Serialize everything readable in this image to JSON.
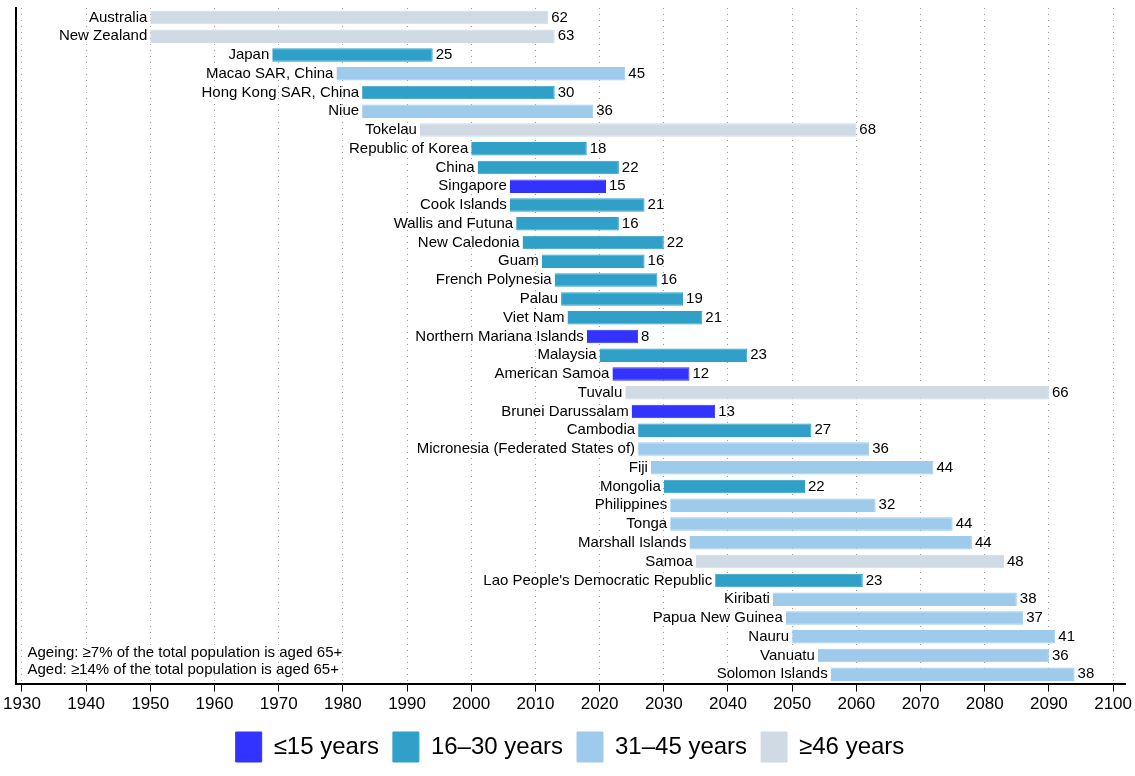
{
  "chart_data": {
    "type": "bar",
    "orientation": "horizontal",
    "categories": [
      "Australia",
      "New Zealand",
      "Japan",
      "Macao SAR, China",
      "Hong Kong SAR, China",
      "Niue",
      "Tokelau",
      "Republic of Korea",
      "China",
      "Singapore",
      "Cook Islands",
      "Wallis and Futuna",
      "New Caledonia",
      "Guam",
      "French Polynesia",
      "Palau",
      "Viet Nam",
      "Northern Mariana Islands",
      "Malaysia",
      "American Samoa",
      "Tuvalu",
      "Brunei Darussalam",
      "Cambodia",
      "Micronesia (Federated States of)",
      "Fiji",
      "Mongolia",
      "Philippines",
      "Tonga",
      "Marshall Islands",
      "Samoa",
      "Lao People's Democratic Republic",
      "Kiribati",
      "Papua New Guinea",
      "Nauru",
      "Vanuatu",
      "Solomon Islands"
    ],
    "series": [
      {
        "name": "≤15 years",
        "color": "#3333ff",
        "values": [
          null,
          null,
          null,
          null,
          null,
          null,
          null,
          null,
          null,
          15,
          null,
          null,
          null,
          null,
          null,
          null,
          null,
          8,
          null,
          12,
          null,
          13,
          null,
          null,
          null,
          null,
          null,
          null,
          null,
          null,
          null,
          null,
          null,
          null,
          null,
          null
        ],
        "base": [
          null,
          null,
          null,
          null,
          null,
          null,
          null,
          null,
          null,
          2006,
          null,
          null,
          null,
          null,
          null,
          null,
          null,
          2018,
          null,
          2022,
          null,
          2025,
          null,
          null,
          null,
          null,
          null,
          null,
          null,
          null,
          null,
          null,
          null,
          null,
          null,
          null
        ]
      },
      {
        "name": "16–30 years",
        "color": "#30a0c8",
        "values": [
          null,
          null,
          25,
          null,
          30,
          null,
          null,
          18,
          22,
          null,
          21,
          16,
          22,
          16,
          16,
          19,
          21,
          null,
          23,
          null,
          null,
          null,
          27,
          null,
          null,
          22,
          null,
          null,
          null,
          null,
          23,
          null,
          null,
          null,
          null,
          null
        ],
        "base": [
          null,
          null,
          1969,
          null,
          1983,
          null,
          null,
          2000,
          2001,
          null,
          2006,
          2007,
          2008,
          2011,
          2013,
          2014,
          2015,
          null,
          2020,
          null,
          null,
          null,
          2026,
          null,
          null,
          2030,
          null,
          null,
          null,
          null,
          2038,
          null,
          null,
          null,
          null,
          null
        ]
      },
      {
        "name": "31–45 years",
        "color": "#9ecbec",
        "values": [
          null,
          null,
          null,
          45,
          null,
          36,
          null,
          null,
          null,
          null,
          null,
          null,
          null,
          null,
          null,
          null,
          null,
          null,
          null,
          null,
          null,
          null,
          null,
          36,
          44,
          null,
          32,
          44,
          44,
          null,
          null,
          38,
          37,
          41,
          36,
          38
        ],
        "base": [
          null,
          null,
          null,
          1979,
          null,
          1983,
          null,
          null,
          null,
          null,
          null,
          null,
          null,
          null,
          null,
          null,
          null,
          null,
          null,
          null,
          null,
          null,
          null,
          2026,
          2028,
          null,
          2031,
          2031,
          2034,
          null,
          null,
          2047,
          2049,
          2050,
          2054,
          2056
        ]
      },
      {
        "name": "≥46 years",
        "color": "#d0dae5",
        "values": [
          62,
          63,
          null,
          null,
          null,
          null,
          68,
          null,
          null,
          null,
          null,
          null,
          null,
          null,
          null,
          null,
          null,
          null,
          null,
          null,
          66,
          null,
          null,
          null,
          null,
          null,
          null,
          null,
          null,
          48,
          null,
          null,
          null,
          null,
          null,
          null
        ],
        "base": [
          1950,
          1950,
          null,
          null,
          null,
          null,
          1992,
          null,
          null,
          null,
          null,
          null,
          null,
          null,
          null,
          null,
          null,
          null,
          null,
          null,
          2024,
          null,
          null,
          null,
          null,
          null,
          null,
          null,
          null,
          2035,
          null,
          null,
          null,
          null,
          null,
          null
        ]
      }
    ],
    "xlim": [
      1929,
      2102
    ],
    "xticks": [
      1930,
      1940,
      1950,
      1960,
      1970,
      1980,
      1990,
      2000,
      2010,
      2020,
      2030,
      2040,
      2050,
      2060,
      2070,
      2080,
      2090,
      2100
    ],
    "grid": "x",
    "legend": "bottom",
    "tick_labels": "x",
    "data_labels": true,
    "annotations": [
      "Ageing: ≥7% of the total population is aged 65+",
      "Aged: ≥14% of the total population is aged 65+"
    ]
  }
}
